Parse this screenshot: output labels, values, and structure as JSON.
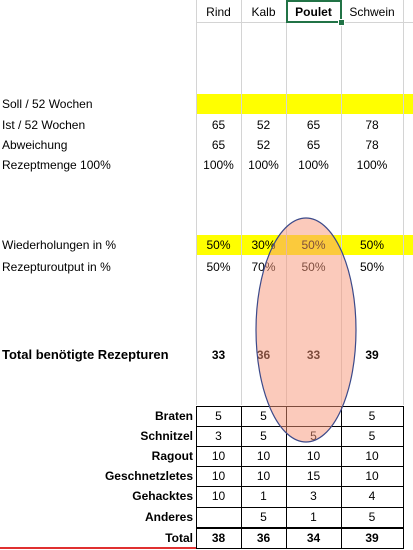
{
  "columns": [
    "Rind",
    "Kalb",
    "Poulet",
    "Schwein"
  ],
  "top_rows": [
    {
      "label": "Soll / 52 Wochen",
      "values": [
        null,
        null,
        null,
        null
      ]
    },
    {
      "label": "Ist / 52 Wochen",
      "values": [
        "65",
        "52",
        "65",
        "78"
      ]
    },
    {
      "label": "Abweichung",
      "values": [
        "65",
        "52",
        "65",
        "78"
      ]
    },
    {
      "label": "Rezeptmenge 100%",
      "values": [
        "100%",
        "100%",
        "100%",
        "100%"
      ]
    },
    {
      "label": "Wiederholungen in %",
      "values": [
        "50%",
        "30%",
        "50%",
        "50%"
      ]
    },
    {
      "label": "Rezepturoutput in %",
      "values": [
        "50%",
        "70%",
        "50%",
        "50%"
      ]
    },
    {
      "label": "Total benötigte Rezepturen",
      "values": [
        "33",
        "36",
        "33",
        "39"
      ]
    }
  ],
  "table": {
    "rows": [
      {
        "label": "Braten",
        "values": [
          "5",
          "5",
          null,
          "5"
        ]
      },
      {
        "label": "Schnitzel",
        "values": [
          "3",
          "5",
          "5",
          "5"
        ]
      },
      {
        "label": "Ragout",
        "values": [
          "10",
          "10",
          "10",
          "10"
        ]
      },
      {
        "label": "Geschnetzletes",
        "values": [
          "10",
          "10",
          "15",
          "10"
        ]
      },
      {
        "label": "Gehacktes",
        "values": [
          "10",
          "1",
          "3",
          "4"
        ]
      },
      {
        "label": "Anderes",
        "values": [
          null,
          "5",
          "1",
          "5"
        ]
      },
      {
        "label": "Total",
        "values": [
          "38",
          "36",
          "34",
          "39"
        ]
      }
    ]
  }
}
